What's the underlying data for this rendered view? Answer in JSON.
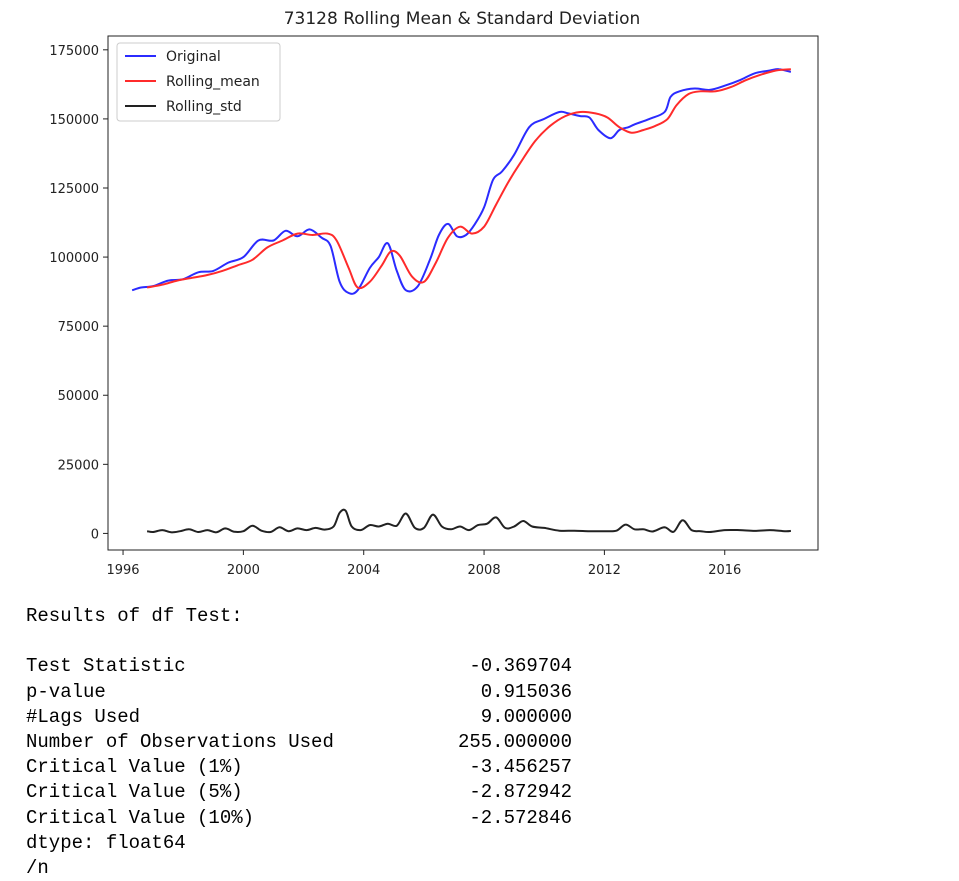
{
  "chart_data": {
    "type": "line",
    "title": "73128 Rolling Mean & Standard Deviation",
    "xlabel": "",
    "ylabel": "",
    "xlim": [
      1995.5,
      2019.1
    ],
    "ylim": [
      -6000,
      180000
    ],
    "x_ticks": [
      1996,
      2000,
      2004,
      2008,
      2012,
      2016
    ],
    "x_tick_labels": [
      "1996",
      "2000",
      "2004",
      "2008",
      "2012",
      "2016"
    ],
    "y_ticks": [
      0,
      25000,
      50000,
      75000,
      100000,
      125000,
      150000,
      175000
    ],
    "y_tick_labels": [
      "0",
      "25000",
      "50000",
      "75000",
      "100000",
      "125000",
      "150000",
      "175000"
    ],
    "legend_position": "upper-left",
    "series": [
      {
        "name": "Original",
        "color": "#2b2bff",
        "x": [
          1996.3,
          1996.6,
          1997.0,
          1997.5,
          1998.0,
          1998.5,
          1999.0,
          1999.5,
          2000.0,
          2000.5,
          2001.0,
          2001.4,
          2001.8,
          2002.2,
          2002.6,
          2002.9,
          2003.2,
          2003.5,
          2003.8,
          2004.2,
          2004.5,
          2004.8,
          2005.1,
          2005.4,
          2005.8,
          2006.2,
          2006.5,
          2006.8,
          2007.1,
          2007.4,
          2007.7,
          2008.0,
          2008.3,
          2008.6,
          2009.0,
          2009.5,
          2010.0,
          2010.5,
          2010.8,
          2011.2,
          2011.5,
          2011.8,
          2012.2,
          2012.5,
          2012.8,
          2013.0,
          2013.5,
          2014.0,
          2014.2,
          2014.5,
          2015.0,
          2015.5,
          2016.0,
          2016.5,
          2017.0,
          2017.5,
          2017.8,
          2018.2
        ],
        "values": [
          88000,
          89000,
          89500,
          91500,
          92000,
          94500,
          95000,
          98000,
          100000,
          106000,
          106000,
          109500,
          107500,
          110000,
          107000,
          104000,
          91000,
          87000,
          88000,
          96000,
          100000,
          105000,
          95000,
          88000,
          89500,
          99000,
          108000,
          112000,
          107500,
          108000,
          112000,
          118000,
          128000,
          131000,
          137000,
          147000,
          150000,
          152500,
          152000,
          151000,
          150500,
          146000,
          143000,
          146000,
          147000,
          148000,
          150000,
          152500,
          158000,
          160000,
          161000,
          160500,
          162000,
          164000,
          166500,
          167500,
          168000,
          167000
        ]
      },
      {
        "name": "Rolling_mean",
        "color": "#ff2b2b",
        "x": [
          1996.8,
          1997.3,
          1997.8,
          1998.3,
          1998.8,
          1999.3,
          1999.8,
          2000.3,
          2000.8,
          2001.3,
          2001.8,
          2002.3,
          2002.8,
          2003.1,
          2003.5,
          2003.8,
          2004.2,
          2004.6,
          2004.9,
          2005.2,
          2005.6,
          2006.0,
          2006.4,
          2006.8,
          2007.2,
          2007.6,
          2008.0,
          2008.4,
          2008.8,
          2009.2,
          2009.7,
          2010.2,
          2010.7,
          2011.2,
          2011.7,
          2012.1,
          2012.5,
          2012.9,
          2013.3,
          2013.7,
          2014.1,
          2014.4,
          2014.8,
          2015.2,
          2015.7,
          2016.2,
          2016.7,
          2017.2,
          2017.7,
          2018.2
        ],
        "values": [
          89000,
          90000,
          91500,
          92500,
          93500,
          95000,
          97000,
          99000,
          103500,
          106000,
          108500,
          108000,
          108500,
          106000,
          96000,
          89000,
          91000,
          97000,
          102000,
          100500,
          93000,
          91000,
          98000,
          107000,
          111000,
          108500,
          111000,
          119000,
          127000,
          134000,
          142000,
          147500,
          151000,
          152500,
          152000,
          150500,
          147000,
          145000,
          146000,
          147500,
          150000,
          155000,
          159000,
          160000,
          160000,
          161500,
          164000,
          166000,
          167500,
          168000
        ]
      },
      {
        "name": "Rolling_std",
        "color": "#222222",
        "x": [
          1996.8,
          1997.0,
          1997.3,
          1997.6,
          1997.9,
          1998.2,
          1998.5,
          1998.8,
          1999.1,
          1999.4,
          1999.7,
          2000.0,
          2000.3,
          2000.6,
          2000.9,
          2001.2,
          2001.5,
          2001.8,
          2002.1,
          2002.4,
          2002.7,
          2003.0,
          2003.2,
          2003.4,
          2003.6,
          2003.9,
          2004.2,
          2004.5,
          2004.8,
          2005.1,
          2005.4,
          2005.7,
          2006.0,
          2006.3,
          2006.6,
          2006.9,
          2007.2,
          2007.5,
          2007.8,
          2008.1,
          2008.4,
          2008.7,
          2009.0,
          2009.3,
          2009.6,
          2010.0,
          2010.5,
          2011.0,
          2011.5,
          2012.0,
          2012.4,
          2012.7,
          2013.0,
          2013.3,
          2013.6,
          2014.0,
          2014.3,
          2014.6,
          2014.9,
          2015.2,
          2015.5,
          2016.0,
          2016.5,
          2017.0,
          2017.5,
          2018.0,
          2018.2
        ],
        "values": [
          800,
          500,
          1200,
          400,
          800,
          1500,
          500,
          1200,
          400,
          1800,
          600,
          800,
          2800,
          1000,
          500,
          2200,
          800,
          1800,
          1200,
          2000,
          1400,
          2500,
          7500,
          8200,
          2500,
          1200,
          3000,
          2500,
          3500,
          2800,
          7200,
          2000,
          2000,
          6800,
          2500,
          1500,
          2500,
          1200,
          3000,
          3500,
          5800,
          2000,
          2500,
          4500,
          2500,
          2000,
          1000,
          1000,
          800,
          800,
          1000,
          3200,
          1500,
          1500,
          700,
          2200,
          600,
          4800,
          1200,
          800,
          500,
          1200,
          1200,
          900,
          1200,
          800,
          900
        ]
      }
    ]
  },
  "output": {
    "heading": "Results of df Test:",
    "rows": [
      {
        "label": "Test Statistic",
        "value": "-0.369704"
      },
      {
        "label": "p-value",
        "value": "0.915036"
      },
      {
        "label": "#Lags Used",
        "value": "9.000000"
      },
      {
        "label": "Number of Observations Used",
        "value": "255.000000"
      },
      {
        "label": "Critical Value (1%)",
        "value": "-3.456257"
      },
      {
        "label": "Critical Value (5%)",
        "value": "-2.872942"
      },
      {
        "label": "Critical Value (10%)",
        "value": "-2.572846"
      }
    ],
    "dtype": "dtype: float64",
    "trailing": "/n"
  }
}
